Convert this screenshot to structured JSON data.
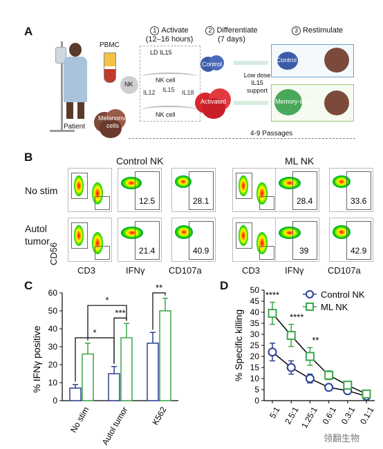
{
  "panel_a": {
    "letter": "A",
    "patient_label": "Patient",
    "pbmc_label": "PBMC",
    "melanoma_label": "Melanoma\ncells",
    "nk_label_left": "NK",
    "steps": [
      {
        "num": "1",
        "title": "Activate",
        "sub": "(12–16 hours)"
      },
      {
        "num": "2",
        "title": "Differentiate",
        "sub": "(7 days)"
      },
      {
        "num": "3",
        "title": "Restimulate",
        "sub": ""
      }
    ],
    "ld_il15": "LD IL15",
    "nk_cell_top": "NK cell",
    "cytokines": [
      "IL12",
      "IL15",
      "IL18"
    ],
    "nk_cell_bottom": "NK cell",
    "control_label": "Control",
    "activated_label": "Activated",
    "low_dose": "Low dose\nIL15\nsupport",
    "control_right": "Control",
    "memory_like": "Memory-like",
    "passages": "4-9 Passages"
  },
  "panel_b": {
    "letter": "B",
    "group_left": "Control NK",
    "group_right": "ML NK",
    "row_labels": [
      "No stim",
      "Autol\ntumor"
    ],
    "y_axis": "CD56",
    "x_labels": [
      "CD3",
      "IFNγ",
      "CD107a",
      "CD3",
      "IFNγ",
      "CD107a"
    ],
    "values": {
      "row1": [
        "12.5",
        "28.1",
        "28.4",
        "33.6"
      ],
      "row2": [
        "21.4",
        "40.9",
        "39",
        "42.9"
      ]
    }
  },
  "panel_c": {
    "letter": "C",
    "ylabel": "% IFNγ positive",
    "yticks": [
      "0",
      "10",
      "20",
      "30",
      "40",
      "50",
      "60"
    ],
    "categories": [
      "No stim",
      "Autol tumor",
      "K562"
    ],
    "sig": [
      "*",
      "*",
      "***",
      "**"
    ]
  },
  "panel_d": {
    "letter": "D",
    "ylabel": "% Specific killing",
    "yticks": [
      "0",
      "5",
      "10",
      "15",
      "20",
      "25",
      "30",
      "35",
      "40",
      "45",
      "50"
    ],
    "xticks": [
      "5:1",
      "2.5:1",
      "1.25:1",
      "0.6:1",
      "0.3:1",
      "0.1:1"
    ],
    "legend": [
      "Control NK",
      "ML NK"
    ],
    "sig": [
      "****",
      "****",
      "**"
    ]
  },
  "watermark": "领翻生物",
  "colors": {
    "control": "#2b3f93",
    "ml": "#3aa64a",
    "activated": "#d9262e",
    "control_cell": "#3a5ca8"
  },
  "chart_data": [
    {
      "type": "bar",
      "title": "",
      "xlabel": "",
      "ylabel": "% IFNγ positive",
      "ylim": [
        0,
        60
      ],
      "categories": [
        "No stim",
        "Autol tumor",
        "K562"
      ],
      "series": [
        {
          "name": "Control NK",
          "values": [
            7,
            15,
            32
          ],
          "error": [
            2,
            4,
            6
          ]
        },
        {
          "name": "ML NK",
          "values": [
            26,
            35,
            50
          ],
          "error": [
            6,
            8,
            7
          ]
        }
      ]
    },
    {
      "type": "line",
      "title": "",
      "xlabel": "",
      "ylabel": "% Specific killing",
      "ylim": [
        0,
        50
      ],
      "x": [
        "5:1",
        "2.5:1",
        "1.25:1",
        "0.6:1",
        "0.3:1",
        "0.1:1"
      ],
      "series": [
        {
          "name": "Control NK",
          "values": [
            22,
            15,
            10,
            6,
            4.5,
            2
          ],
          "error": [
            4,
            3,
            2,
            1.5,
            1,
            1
          ]
        },
        {
          "name": "ML NK",
          "values": [
            39.5,
            29.5,
            20,
            11.5,
            7,
            3
          ],
          "error": [
            5,
            5,
            4,
            2,
            1,
            1
          ]
        }
      ]
    }
  ]
}
